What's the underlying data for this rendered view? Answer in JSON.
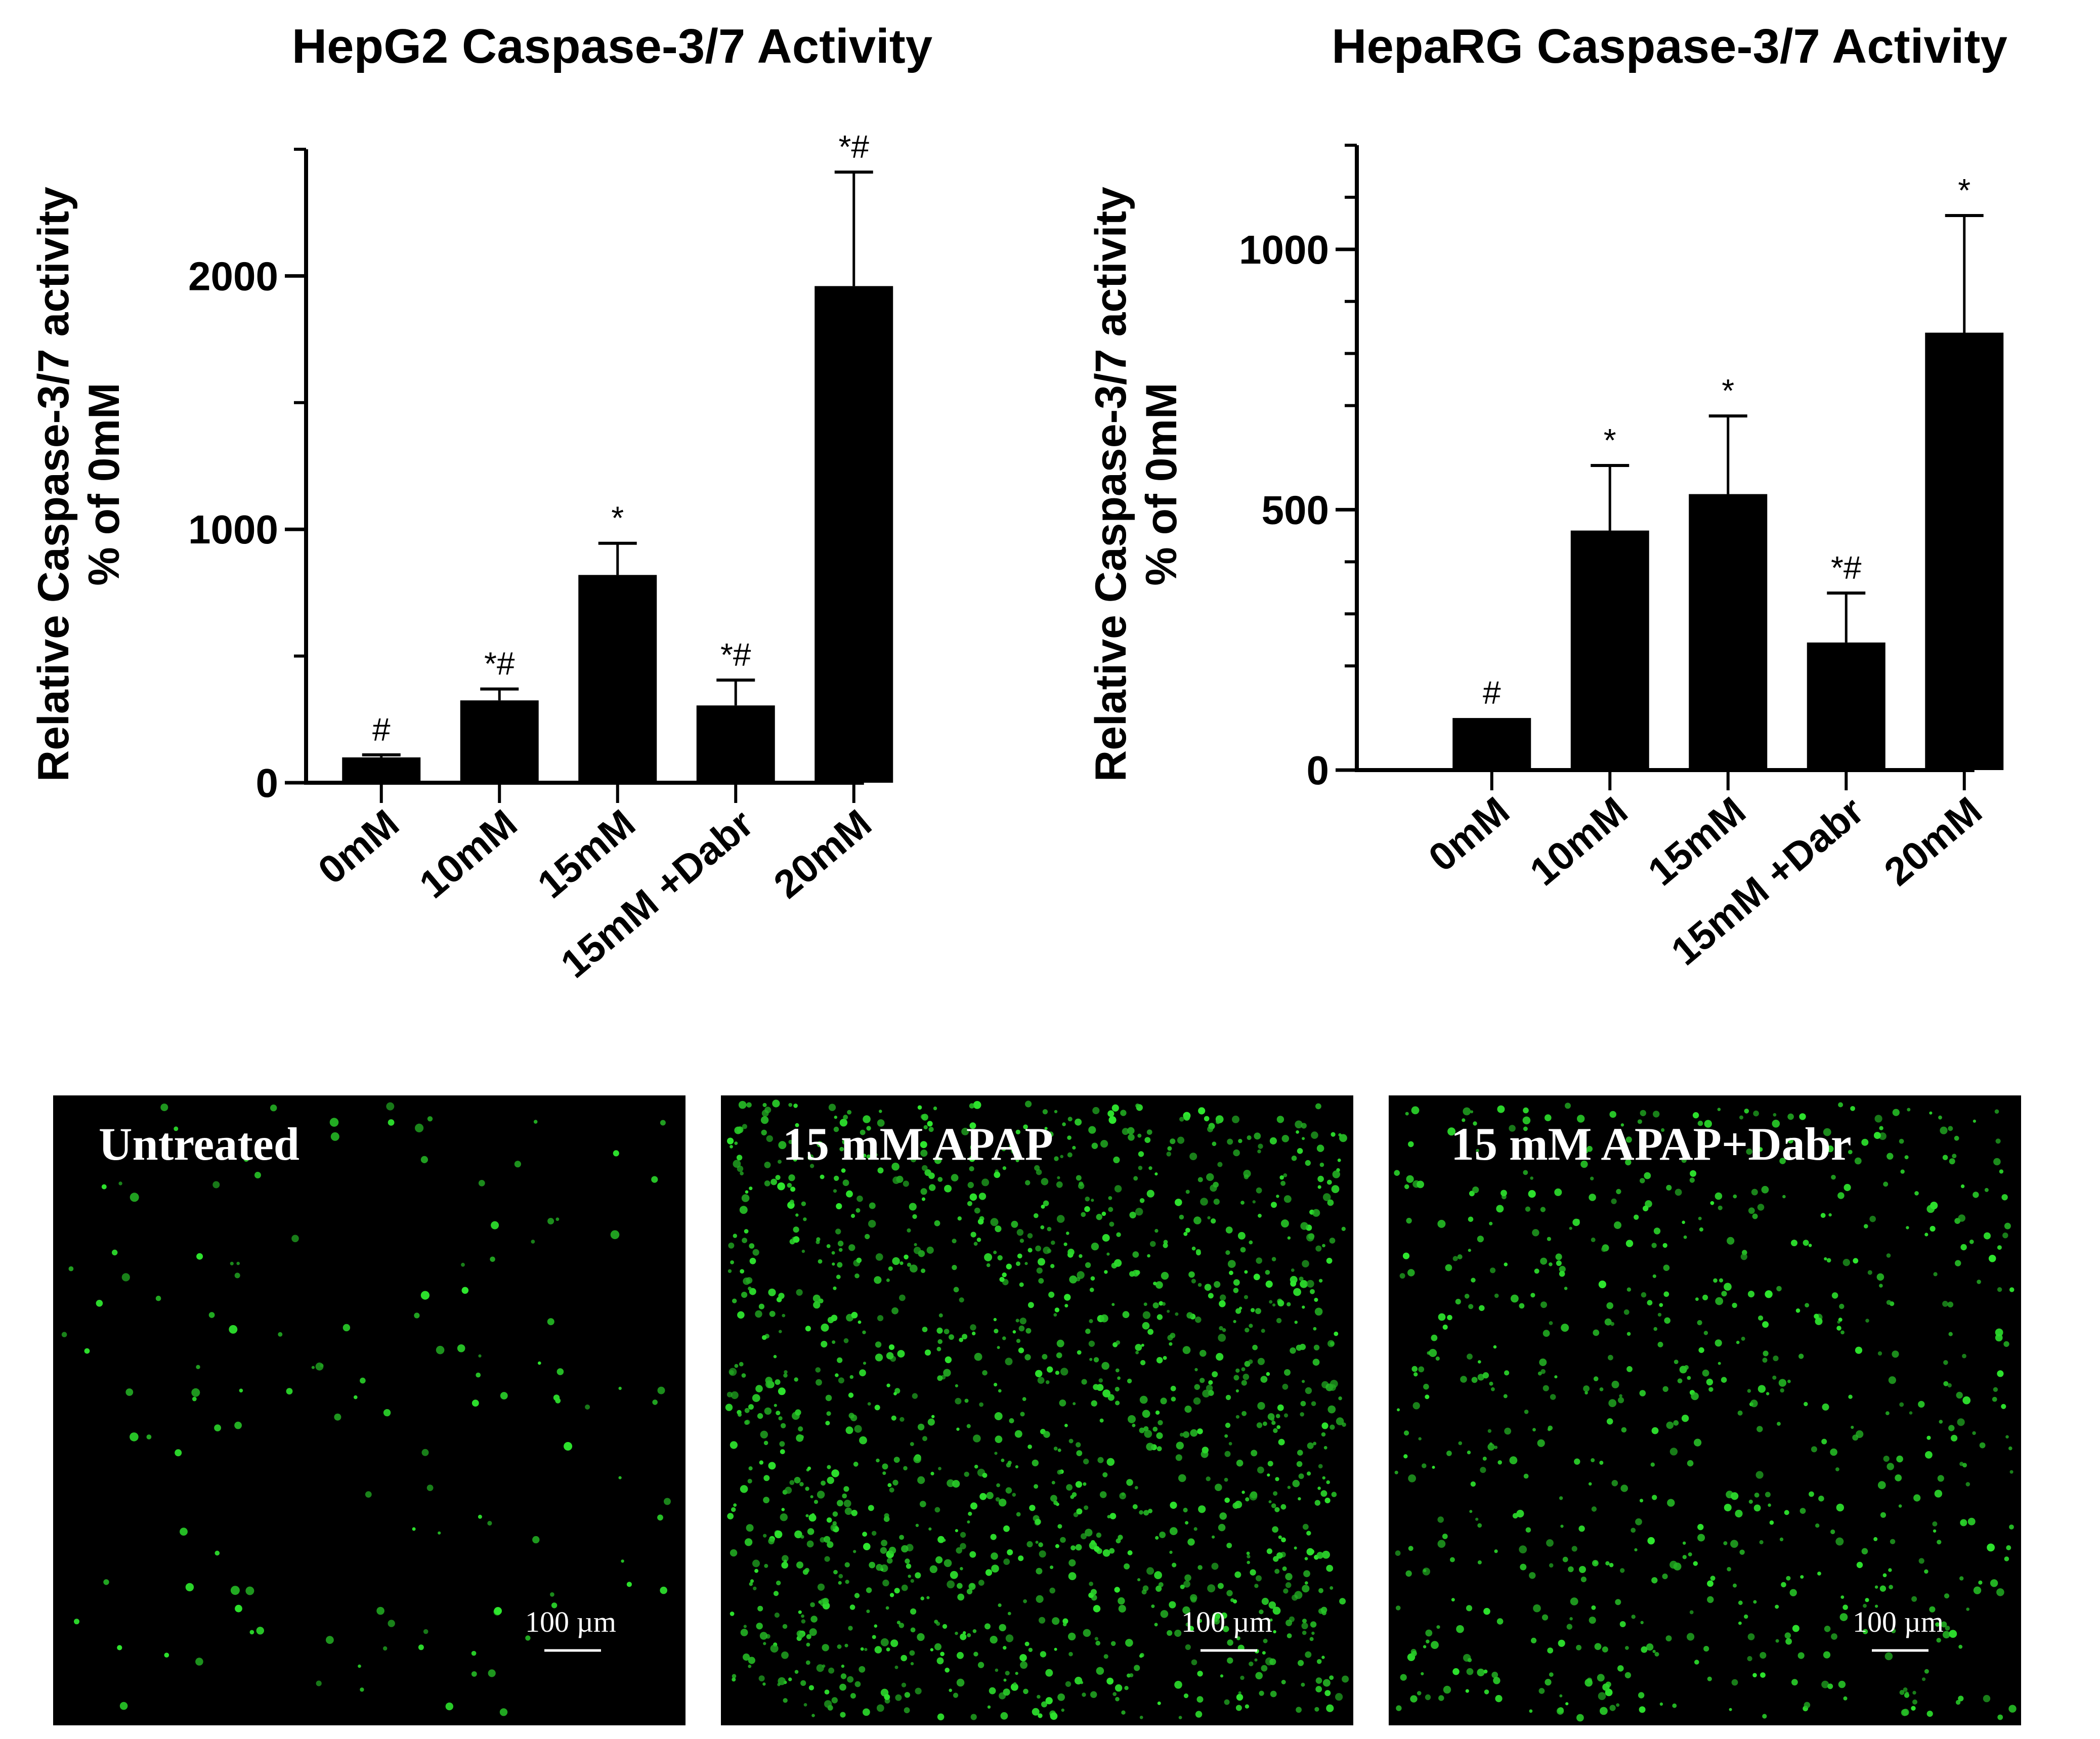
{
  "chart_data": [
    {
      "type": "bar",
      "title": "HepG2 Caspase-3/7 Activity",
      "ylabel": "Relative Caspase-3/7 activity % of 0mM",
      "ylabel_lines": [
        "Relative Caspase-3/7 activity",
        "% of 0mM"
      ],
      "categories": [
        "0mM",
        "10mM",
        "15mM",
        "15mM +Dabr",
        "20mM"
      ],
      "values": [
        100,
        325,
        820,
        305,
        1960
      ],
      "error": [
        10,
        45,
        125,
        100,
        450
      ],
      "significance": [
        "#",
        "*#",
        "*",
        "*#",
        "*#"
      ],
      "ylim": [
        0,
        2500
      ],
      "yticks": [
        0,
        1000,
        2000
      ],
      "yticks_minor": [
        500,
        1500,
        2500
      ],
      "grid": false,
      "bar_color": "#000000"
    },
    {
      "type": "bar",
      "title": "HepaRG Caspase-3/7 Activity",
      "ylabel": "Relative Caspase-3/7 activity % of 0mM",
      "ylabel_lines": [
        "Relative Caspase-3/7 activity",
        "% of 0mM"
      ],
      "categories": [
        "0mM",
        "10mM",
        "15mM",
        "15mM +Dabr",
        "20mM"
      ],
      "values": [
        100,
        460,
        530,
        245,
        840
      ],
      "error": [
        0,
        125,
        150,
        95,
        225
      ],
      "significance": [
        "#",
        "*",
        "*",
        "*#",
        "*"
      ],
      "ylim": [
        0,
        1200
      ],
      "yticks": [
        0,
        500,
        1000
      ],
      "yticks_minor": [
        200,
        300,
        400,
        700,
        800,
        900,
        1100,
        1200
      ],
      "grid": false,
      "bar_color": "#000000"
    }
  ],
  "images": [
    {
      "label": "Untreated",
      "scale_bar": "100 µm",
      "density": "low"
    },
    {
      "label": "15 mM APAP",
      "scale_bar": "100 µm",
      "density": "high"
    },
    {
      "label": "15 mM APAP+Dabr",
      "scale_bar": "100 µm",
      "density": "medium"
    }
  ],
  "colors": {
    "bars": "#000000",
    "panel_background": "#000000",
    "fluorescence": "#2fc42f",
    "panel_text": "#ffffff"
  }
}
